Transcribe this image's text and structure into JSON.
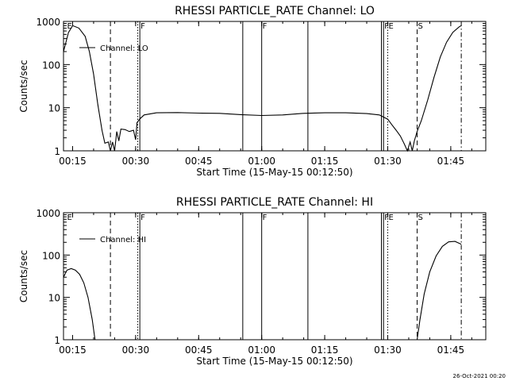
{
  "footer_timestamp": "26-Oct-2021 00:20",
  "chart_data": [
    {
      "type": "line",
      "title": "RHESSI PARTICLE_RATE Channel: LO",
      "xlabel": "Start Time (15-May-15 00:12:50)",
      "ylabel": "Counts/sec",
      "yscale": "log",
      "ylim": [
        1,
        1000
      ],
      "x_range": [
        "00:12:50",
        "01:53:20"
      ],
      "x_ticks": [
        "00:15",
        "00:30",
        "00:45",
        "01:00",
        "01:15",
        "01:30",
        "01:45"
      ],
      "y_ticks": [
        "1",
        "10",
        "100",
        "1000"
      ],
      "legend": "Channel: LO",
      "legend_position": "top-left",
      "markers": [
        {
          "time": "00:13:30",
          "label": "E",
          "style": "none"
        },
        {
          "time": "00:24:00",
          "label": "",
          "style": "dashed"
        },
        {
          "time": "00:30:30",
          "label": "",
          "style": "dotted"
        },
        {
          "time": "00:31:00",
          "label": "F",
          "style": "solid"
        },
        {
          "time": "00:55:30",
          "label": "",
          "style": "solid"
        },
        {
          "time": "01:00:00",
          "label": "F",
          "style": "solid"
        },
        {
          "time": "01:11:00",
          "label": "",
          "style": "solid"
        },
        {
          "time": "01:28:30",
          "label": "",
          "style": "solid"
        },
        {
          "time": "01:29:00",
          "label": "F",
          "style": "solid"
        },
        {
          "time": "01:30:00",
          "label": "E",
          "style": "dotted"
        },
        {
          "time": "01:37:00",
          "label": "S",
          "style": "dashed"
        },
        {
          "time": "01:47:30",
          "label": "",
          "style": "dashdot"
        }
      ],
      "series": [
        {
          "points": [
            [
              "00:12:50",
              200
            ],
            [
              "00:14:00",
              550
            ],
            [
              "00:15:00",
              800
            ],
            [
              "00:16:30",
              700
            ],
            [
              "00:18:00",
              450
            ],
            [
              "00:19:00",
              200
            ],
            [
              "00:20:00",
              60
            ],
            [
              "00:21:00",
              12
            ],
            [
              "00:22:00",
              3
            ],
            [
              "00:22:40",
              1.5
            ],
            [
              "00:23:30",
              1.6
            ],
            [
              "00:24:00",
              1.0
            ],
            [
              "00:24:30",
              1.6
            ],
            [
              "00:25:00",
              1.0
            ],
            [
              "00:25:30",
              2.8
            ],
            [
              "00:26:00",
              1.7
            ],
            [
              "00:26:30",
              3.2
            ],
            [
              "00:27:30",
              3.1
            ],
            [
              "00:28:30",
              2.8
            ],
            [
              "00:29:30",
              3.0
            ],
            [
              "00:30:00",
              1.8
            ],
            [
              "00:30:20",
              4.5
            ],
            [
              "00:31:00",
              5.5
            ],
            [
              "00:32:00",
              6.8
            ],
            [
              "00:35:00",
              7.6
            ],
            [
              "00:40:00",
              7.7
            ],
            [
              "00:45:00",
              7.5
            ],
            [
              "00:50:00",
              7.4
            ],
            [
              "00:55:00",
              6.9
            ],
            [
              "01:00:00",
              6.6
            ],
            [
              "01:05:00",
              6.8
            ],
            [
              "01:10:00",
              7.4
            ],
            [
              "01:15:00",
              7.6
            ],
            [
              "01:20:00",
              7.6
            ],
            [
              "01:25:00",
              7.3
            ],
            [
              "01:28:00",
              6.8
            ],
            [
              "01:30:00",
              5.4
            ],
            [
              "01:31:00",
              4.0
            ],
            [
              "01:32:00",
              3.0
            ],
            [
              "01:33:00",
              2.2
            ],
            [
              "01:34:00",
              1.4
            ],
            [
              "01:34:40",
              1.0
            ],
            [
              "01:35:20",
              1.6
            ],
            [
              "01:35:50",
              1.0
            ],
            [
              "01:36:20",
              1.7
            ],
            [
              "01:37:00",
              2.8
            ],
            [
              "01:38:00",
              5
            ],
            [
              "01:39:30",
              15
            ],
            [
              "01:41:00",
              50
            ],
            [
              "01:42:30",
              150
            ],
            [
              "01:44:00",
              330
            ],
            [
              "01:45:30",
              560
            ],
            [
              "01:47:00",
              750
            ],
            [
              "01:47:30",
              800
            ]
          ]
        }
      ]
    },
    {
      "type": "line",
      "title": "RHESSI PARTICLE_RATE Channel: HI",
      "xlabel": "Start Time (15-May-15 00:12:50)",
      "ylabel": "Counts/sec",
      "yscale": "log",
      "ylim": [
        1,
        1000
      ],
      "x_range": [
        "00:12:50",
        "01:53:20"
      ],
      "x_ticks": [
        "00:15",
        "00:30",
        "00:45",
        "01:00",
        "01:15",
        "01:30",
        "01:45"
      ],
      "y_ticks": [
        "1",
        "10",
        "100",
        "1000"
      ],
      "legend": "Channel: HI",
      "legend_position": "top-left",
      "markers": [
        {
          "time": "00:13:30",
          "label": "E",
          "style": "none"
        },
        {
          "time": "00:24:00",
          "label": "",
          "style": "dashed"
        },
        {
          "time": "00:30:30",
          "label": "",
          "style": "dotted"
        },
        {
          "time": "00:31:00",
          "label": "F",
          "style": "solid"
        },
        {
          "time": "00:55:30",
          "label": "",
          "style": "solid"
        },
        {
          "time": "01:00:00",
          "label": "F",
          "style": "solid"
        },
        {
          "time": "01:11:00",
          "label": "",
          "style": "solid"
        },
        {
          "time": "01:28:30",
          "label": "",
          "style": "solid"
        },
        {
          "time": "01:29:00",
          "label": "F",
          "style": "solid"
        },
        {
          "time": "01:30:00",
          "label": "E",
          "style": "dotted"
        },
        {
          "time": "01:37:00",
          "label": "S",
          "style": "dashed"
        },
        {
          "time": "01:47:30",
          "label": "",
          "style": "dashdot"
        }
      ],
      "series": [
        {
          "points": [
            [
              "00:12:50",
              30
            ],
            [
              "00:13:40",
              44
            ],
            [
              "00:14:40",
              48
            ],
            [
              "00:15:40",
              44
            ],
            [
              "00:16:40",
              35
            ],
            [
              "00:17:40",
              22
            ],
            [
              "00:18:40",
              10
            ],
            [
              "00:19:40",
              3
            ],
            [
              "00:20:20",
              1.0
            ]
          ]
        },
        {
          "points": [
            [
              "01:37:00",
              1.0
            ],
            [
              "01:37:40",
              3
            ],
            [
              "01:38:40",
              12
            ],
            [
              "01:40:00",
              40
            ],
            [
              "01:41:30",
              95
            ],
            [
              "01:43:00",
              160
            ],
            [
              "01:44:30",
              205
            ],
            [
              "01:46:00",
              210
            ],
            [
              "01:47:00",
              190
            ],
            [
              "01:47:30",
              180
            ]
          ]
        }
      ]
    }
  ]
}
